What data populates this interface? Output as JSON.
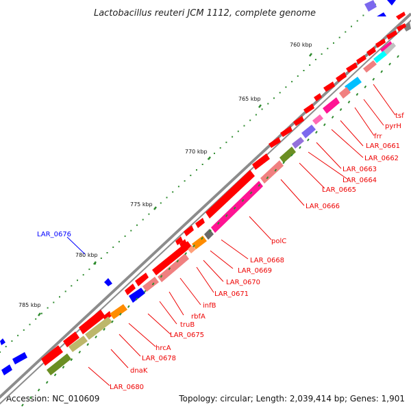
{
  "title": "Lactobacillus reuteri JCM 1112, complete genome",
  "footer": {
    "accession": "Accession: NC_010609",
    "summary": "Topology: circular; Length: 2,039,414 bp; Genes: 1,901"
  },
  "scale_labels": [
    "760 kbp",
    "765 kbp",
    "770 kbp",
    "775 kbp",
    "780 kbp",
    "785 kbp"
  ],
  "gene_labels": [
    "tsf",
    "pyrH",
    "frr",
    "LAR_0661",
    "LAR_0662",
    "LAR_0663",
    "LAR_0664",
    "LAR_0665",
    "LAR_0666",
    "polC",
    "LAR_0668",
    "LAR_0669",
    "LAR_0670",
    "LAR_0671",
    "infB",
    "rbfA",
    "truB",
    "LAR_0675",
    "hrcA",
    "LAR_0678",
    "dnaK",
    "LAR_0680"
  ],
  "blue_label": "LAR_0676",
  "colors": {
    "backbone": "#8c8c8c",
    "cds_forward": "#ff0000",
    "cds_reverse": "#0000ff",
    "label_red": "#ee0000",
    "label_blue": "#0000ff",
    "gc_tick": "#2e8b2e",
    "scale_dot": "#2e8b2e"
  }
}
